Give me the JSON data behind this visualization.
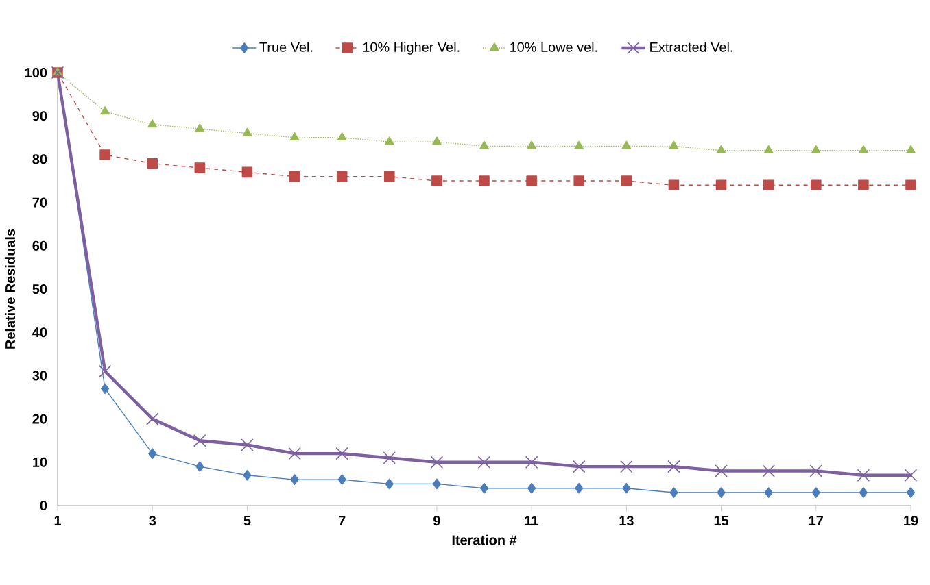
{
  "chart_data": {
    "type": "line",
    "xlabel": "Iteration #",
    "ylabel": "Relative Residuals",
    "x": [
      1,
      2,
      3,
      4,
      5,
      6,
      7,
      8,
      9,
      10,
      11,
      12,
      13,
      14,
      15,
      16,
      17,
      18,
      19
    ],
    "series": [
      {
        "name": "True Vel.",
        "color": "#4a7ebb",
        "marker": "diamond",
        "line_style": "solid",
        "values": [
          100,
          27,
          12,
          9,
          7,
          6,
          6,
          5,
          5,
          4,
          4,
          4,
          4,
          3,
          3,
          3,
          3,
          3,
          3
        ]
      },
      {
        "name": "10% Higher Vel.",
        "color": "#be4b48",
        "marker": "square",
        "line_style": "dashed",
        "values": [
          100,
          81,
          79,
          78,
          77,
          76,
          76,
          76,
          75,
          75,
          75,
          75,
          75,
          74,
          74,
          74,
          74,
          74,
          74
        ]
      },
      {
        "name": "10% Lowe vel.",
        "color": "#98b954",
        "marker": "triangle",
        "line_style": "dotted",
        "values": [
          100,
          91,
          88,
          87,
          86,
          85,
          85,
          84,
          84,
          83,
          83,
          83,
          83,
          83,
          82,
          82,
          82,
          82,
          82
        ]
      },
      {
        "name": "Extracted Vel.",
        "color": "#7d60a0",
        "marker": "cross",
        "line_style": "solid",
        "values": [
          100,
          31,
          20,
          15,
          14,
          12,
          12,
          11,
          10,
          10,
          10,
          9,
          9,
          9,
          8,
          8,
          8,
          7,
          7
        ]
      }
    ],
    "xlim": [
      1,
      19
    ],
    "xticks": [
      1,
      3,
      5,
      7,
      9,
      11,
      13,
      15,
      17,
      19
    ],
    "ylim": [
      0,
      100
    ],
    "yticks": [
      0,
      10,
      20,
      30,
      40,
      50,
      60,
      70,
      80,
      90,
      100
    ],
    "grid": false,
    "legend": "top"
  }
}
